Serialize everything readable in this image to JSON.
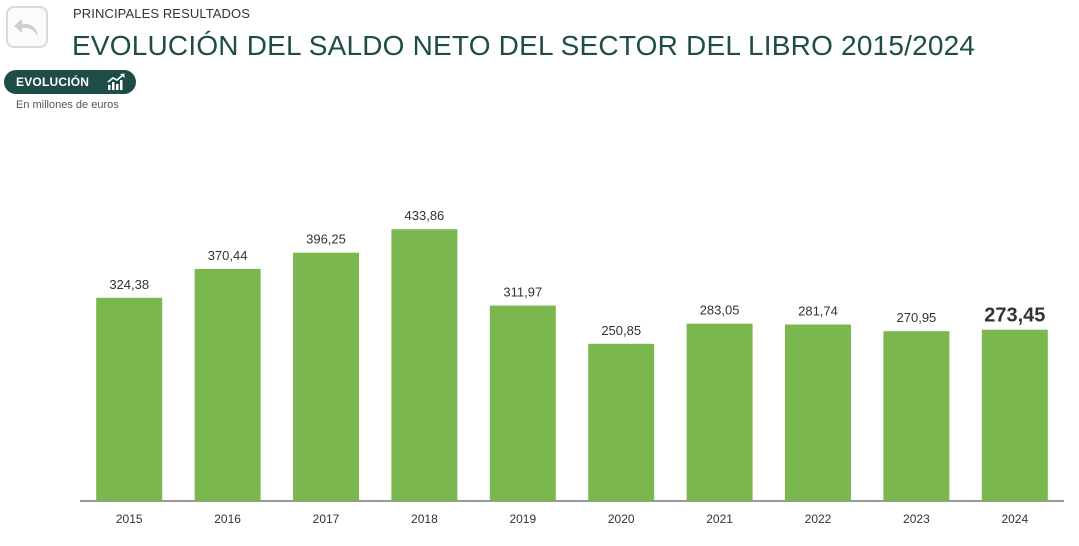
{
  "header": {
    "back_icon": "back-arrow-icon",
    "section": "PRINCIPALES RESULTADOS",
    "title": "EVOLUCIÓN DEL SALDO NETO DEL SECTOR DEL LIBRO 2015/2024"
  },
  "tab": {
    "label": "EVOLUCIÓN",
    "icon": "trend-chart-icon"
  },
  "units_note": "En millones de euros",
  "colors": {
    "bar": "#7ab74e",
    "accent": "#1e4d47"
  },
  "chart_data": {
    "type": "bar",
    "title": "",
    "xlabel": "",
    "ylabel": "",
    "categories": [
      "2015",
      "2016",
      "2017",
      "2018",
      "2019",
      "2020",
      "2021",
      "2022",
      "2023",
      "2024"
    ],
    "values": [
      324.38,
      370.44,
      396.25,
      433.86,
      311.97,
      250.85,
      283.05,
      281.74,
      270.95,
      273.45
    ],
    "value_labels": [
      "324,38",
      "370,44",
      "396,25",
      "433,86",
      "311,97",
      "250,85",
      "283,05",
      "281,74",
      "270,95",
      "273,45"
    ],
    "highlight_category": "2024",
    "ylim": [
      0,
      500
    ],
    "grid": false,
    "legend": "none"
  }
}
